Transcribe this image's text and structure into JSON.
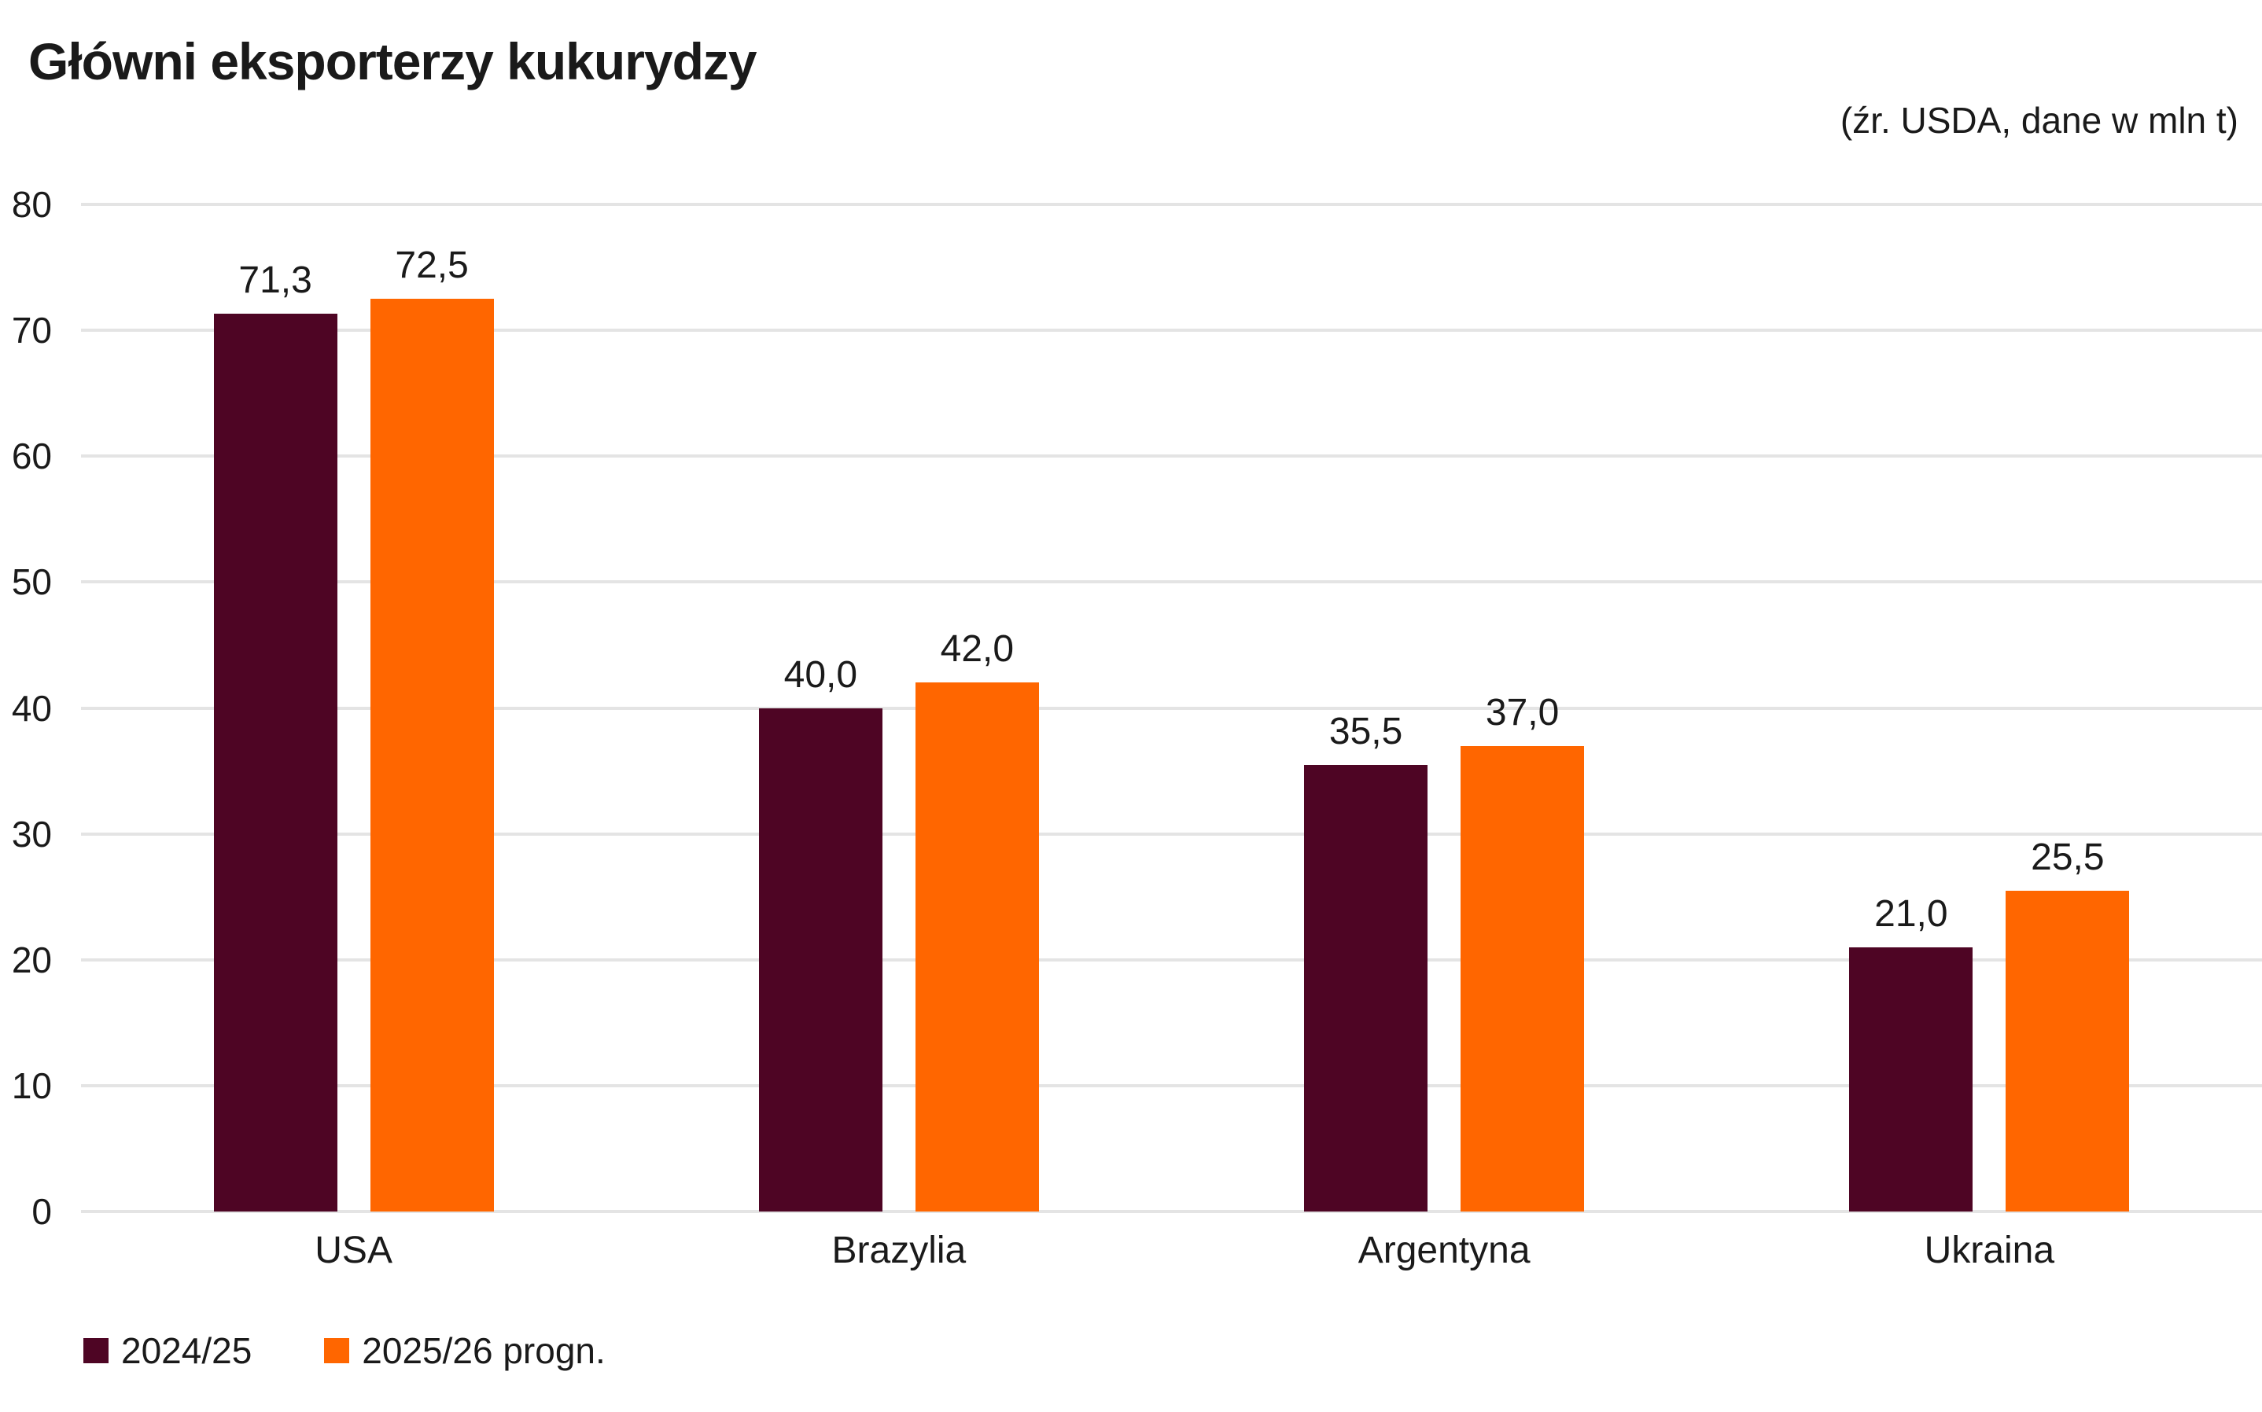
{
  "title": "Główni eksporterzy kukurydzy",
  "subtitle": "(źr. USDA, dane w mln t)",
  "colors": {
    "series1": "#4E0524",
    "series2": "#FF6600",
    "gridline": "#E4E4E4",
    "text": "#1A1A1A",
    "background": "#FFFFFF"
  },
  "chart_data": {
    "type": "bar",
    "title": "Główni eksporterzy kukurydzy",
    "subtitle": "(źr. USDA, dane w mln t)",
    "categories": [
      "USA",
      "Brazylia",
      "Argentyna",
      "Ukraina"
    ],
    "series": [
      {
        "name": "2024/25",
        "color": "#4E0524",
        "values": [
          71.3,
          40.0,
          35.5,
          21.0
        ],
        "labels": [
          "71,3",
          "40,0",
          "35,5",
          "21,0"
        ]
      },
      {
        "name": "2025/26 progn.",
        "color": "#FF6600",
        "values": [
          72.5,
          42.0,
          37.0,
          25.5
        ],
        "labels": [
          "72,5",
          "42,0",
          "37,0",
          "25,5"
        ]
      }
    ],
    "xlabel": "",
    "ylabel": "",
    "ylim": [
      0,
      80
    ],
    "yticks": [
      0,
      10,
      20,
      30,
      40,
      50,
      60,
      70,
      80
    ],
    "grid": true,
    "value_labels": true,
    "decimal_separator": ",",
    "legend_position": "bottom-left"
  },
  "legend": {
    "items": [
      {
        "label": "2024/25",
        "color": "#4E0524"
      },
      {
        "label": "2025/26 progn.",
        "color": "#FF6600"
      }
    ]
  }
}
